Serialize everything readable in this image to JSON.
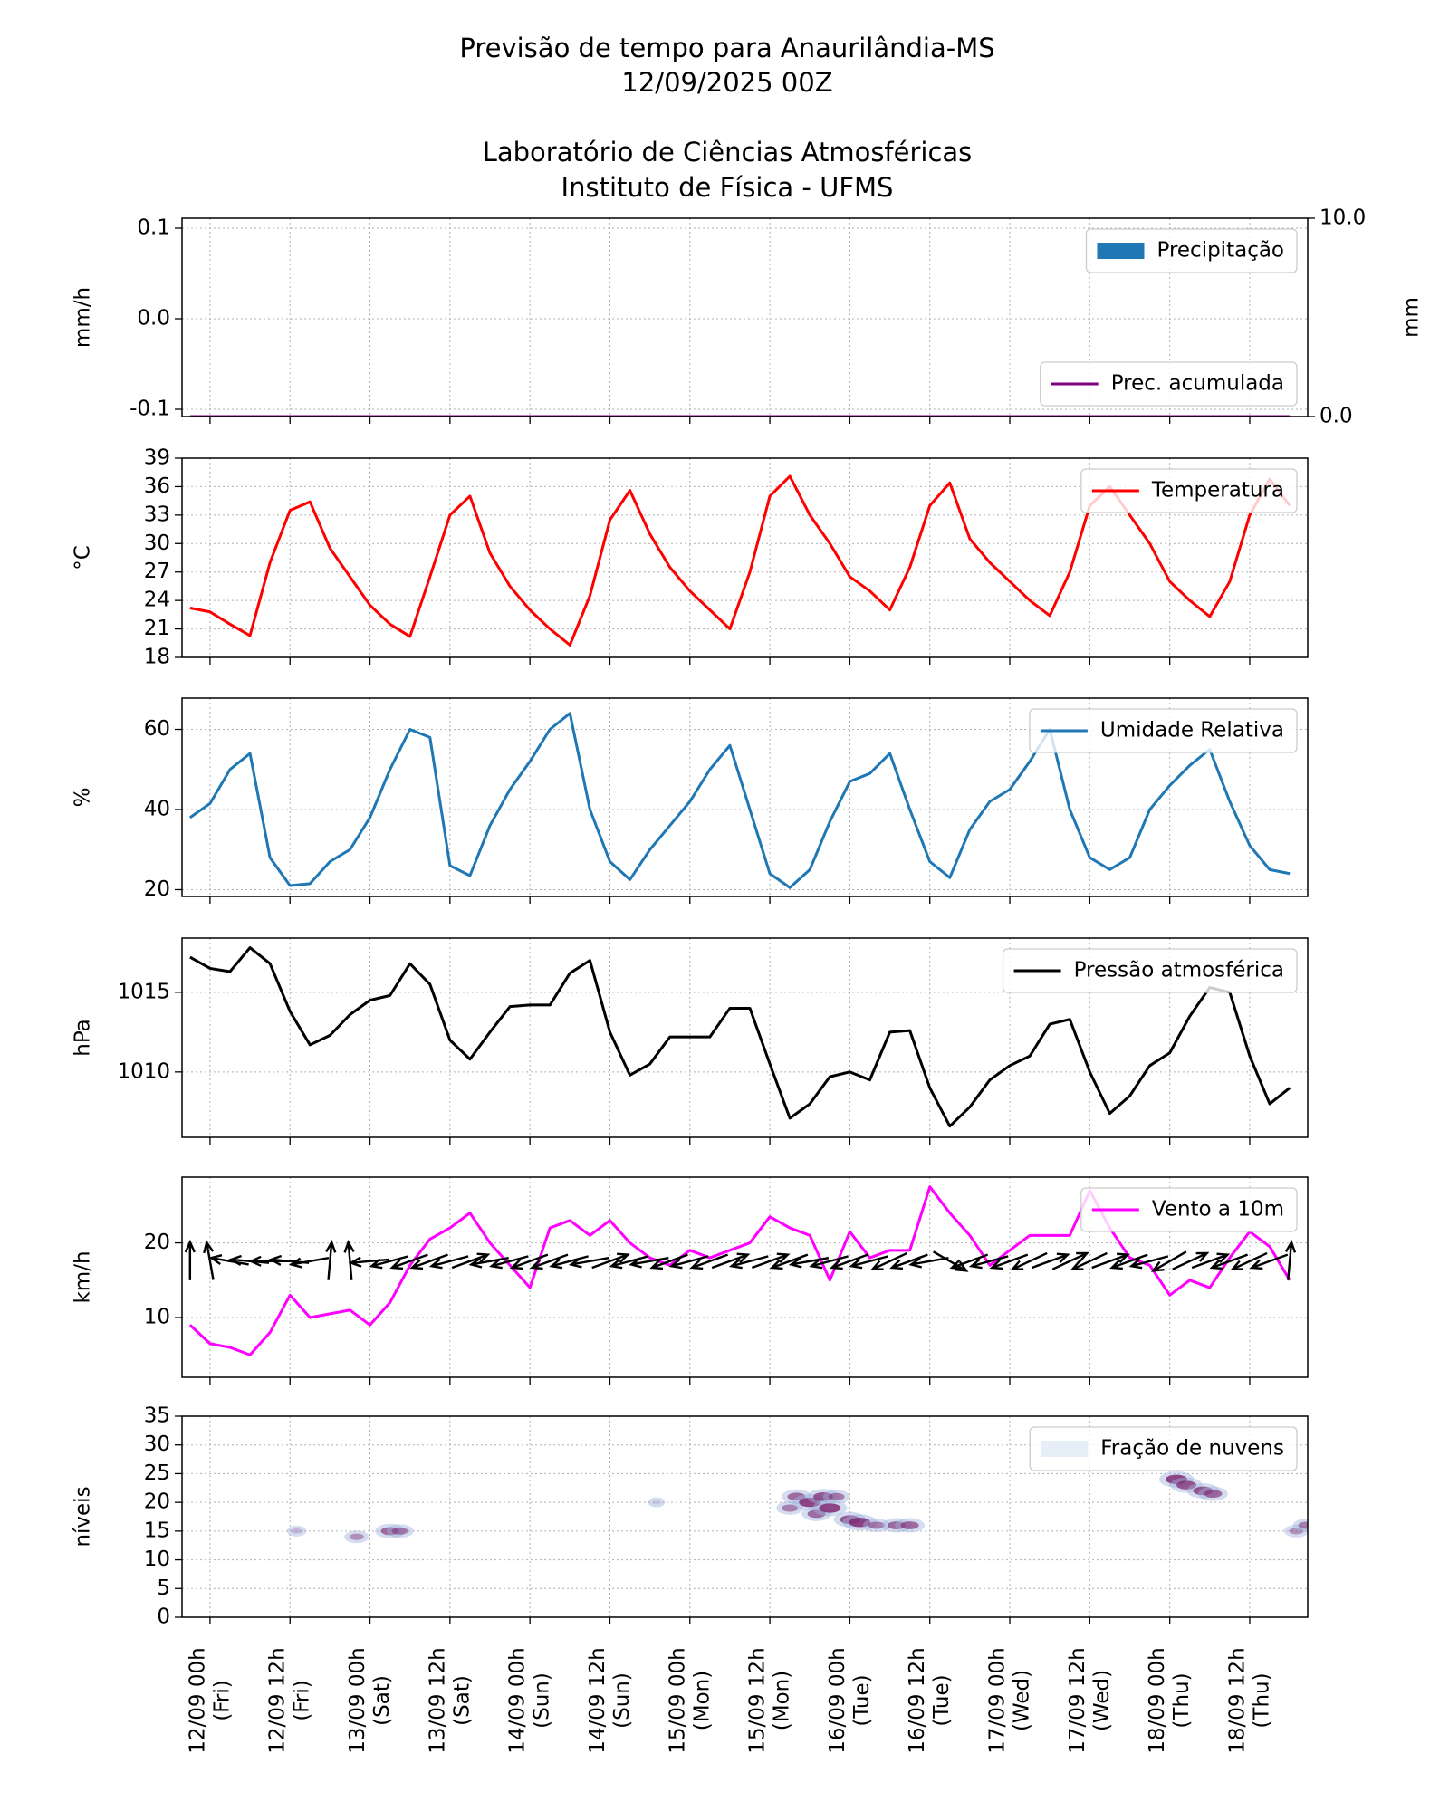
{
  "title": "Previsão de tempo para Anaurilândia-MS",
  "subtitle": "12/09/2025 00Z",
  "institution": "Laboratório de Ciências Atmosféricas",
  "department": "Instituto de Física - UFMS",
  "chart_data": [
    {
      "type": "bar",
      "ylabel": "mm/h",
      "y2label": "mm",
      "xlim": [
        -4.2,
        164.7
      ],
      "ylim": [
        -0.108,
        0.111
      ],
      "yticks": [
        0.1,
        {
          "value": 0,
          "label": "0.0"
        },
        -0.1
      ],
      "y2lim": [
        0,
        10
      ],
      "y2ticks": [
        {
          "value": 0,
          "label": "0.0"
        },
        {
          "value": 10,
          "label": "10.0"
        }
      ],
      "grid": true,
      "x": [
        -3,
        0,
        3,
        6,
        9,
        12,
        15,
        18,
        21,
        24,
        27,
        30,
        33,
        36,
        39,
        42,
        45,
        48,
        51,
        54,
        57,
        60,
        63,
        66,
        69,
        72,
        75,
        78,
        81,
        84,
        87,
        90,
        93,
        96,
        99,
        102,
        105,
        108,
        111,
        114,
        117,
        120,
        123,
        126,
        129,
        132,
        135,
        138,
        141,
        144,
        147,
        150,
        153,
        156,
        159,
        162
      ],
      "series": [
        {
          "name": "Precipitação",
          "type": "bar",
          "color": "#1f77b4",
          "legend": "upper right",
          "values": [
            0,
            0,
            0,
            0,
            0,
            0,
            0,
            0,
            0,
            0,
            0,
            0,
            0,
            0,
            0,
            0,
            0,
            0,
            0,
            0,
            0,
            0,
            0,
            0,
            0,
            0,
            0,
            0,
            0,
            0,
            0,
            0,
            0,
            0,
            0,
            0,
            0,
            0,
            0,
            0,
            0,
            0,
            0,
            0,
            0,
            0,
            0,
            0,
            0,
            0,
            0,
            0,
            0,
            0,
            0,
            0
          ]
        },
        {
          "name": "Prec. acumulada",
          "type": "line",
          "axis": "y2",
          "color": "#800080",
          "legend": "lower right",
          "values": [
            0,
            0,
            0,
            0,
            0,
            0,
            0,
            0,
            0,
            0,
            0,
            0,
            0,
            0,
            0,
            0,
            0,
            0,
            0,
            0,
            0,
            0,
            0,
            0,
            0,
            0,
            0,
            0,
            0,
            0,
            0,
            0,
            0,
            0,
            0,
            0,
            0,
            0,
            0,
            0,
            0,
            0,
            0,
            0,
            0,
            0,
            0,
            0,
            0,
            0,
            0,
            0,
            0,
            0,
            0,
            0
          ]
        }
      ]
    },
    {
      "type": "line",
      "ylabel": "°C",
      "xlim": [
        -4.2,
        164.7
      ],
      "ylim": [
        18,
        39
      ],
      "yticks": [
        18,
        21,
        24,
        27,
        30,
        33,
        36,
        39
      ],
      "grid": true,
      "x": [
        -3,
        0,
        3,
        6,
        9,
        12,
        15,
        18,
        21,
        24,
        27,
        30,
        33,
        36,
        39,
        42,
        45,
        48,
        51,
        54,
        57,
        60,
        63,
        66,
        69,
        72,
        75,
        78,
        81,
        84,
        87,
        90,
        93,
        96,
        99,
        102,
        105,
        108,
        111,
        114,
        117,
        120,
        123,
        126,
        129,
        132,
        135,
        138,
        141,
        144,
        147,
        150,
        153,
        156,
        159,
        162
      ],
      "series": [
        {
          "name": "Temperatura",
          "type": "line",
          "color": "#ff0000",
          "legend": "upper right",
          "values": [
            23.2,
            22.8,
            21.5,
            20.3,
            28,
            33.5,
            34.4,
            29.5,
            26.5,
            23.5,
            21.5,
            20.2,
            26.5,
            33,
            35,
            29,
            25.5,
            23,
            21,
            19.3,
            24.5,
            32.5,
            35.6,
            31,
            27.5,
            25,
            23,
            21,
            27,
            35,
            37.1,
            33,
            30,
            26.5,
            25,
            23,
            27.5,
            34,
            36.4,
            30.5,
            28,
            26,
            24,
            22.4,
            27,
            34,
            36,
            33,
            30,
            26,
            24,
            22.3,
            26,
            33,
            36.8,
            34
          ]
        }
      ]
    },
    {
      "type": "line",
      "ylabel": "%",
      "xlim": [
        -4.2,
        164.7
      ],
      "ylim": [
        18.3,
        67.8
      ],
      "yticks": [
        20,
        40,
        60
      ],
      "grid": true,
      "x": [
        -3,
        0,
        3,
        6,
        9,
        12,
        15,
        18,
        21,
        24,
        27,
        30,
        33,
        36,
        39,
        42,
        45,
        48,
        51,
        54,
        57,
        60,
        63,
        66,
        69,
        72,
        75,
        78,
        81,
        84,
        87,
        90,
        93,
        96,
        99,
        102,
        105,
        108,
        111,
        114,
        117,
        120,
        123,
        126,
        129,
        132,
        135,
        138,
        141,
        144,
        147,
        150,
        153,
        156,
        159,
        162
      ],
      "series": [
        {
          "name": "Umidade Relativa",
          "type": "line",
          "color": "#1f77b4",
          "legend": "upper right",
          "values": [
            38,
            41.5,
            50,
            54,
            28,
            21,
            21.5,
            27,
            30,
            38,
            50,
            60,
            58,
            26,
            23.5,
            36,
            45,
            52,
            60,
            64,
            40,
            27,
            22.5,
            30,
            36,
            42,
            50,
            56,
            40,
            24,
            20.5,
            25,
            37,
            47,
            49,
            54,
            40,
            27,
            23,
            35,
            42,
            45,
            52,
            60,
            40,
            28,
            25,
            28,
            40,
            46,
            51,
            55,
            42,
            31,
            25,
            24
          ]
        }
      ]
    },
    {
      "type": "line",
      "ylabel": "hPa",
      "xlim": [
        -4.2,
        164.7
      ],
      "ylim": [
        1005.9,
        1018.4
      ],
      "yticks": [
        1010,
        1015
      ],
      "grid": true,
      "x": [
        -3,
        0,
        3,
        6,
        9,
        12,
        15,
        18,
        21,
        24,
        27,
        30,
        33,
        36,
        39,
        42,
        45,
        48,
        51,
        54,
        57,
        60,
        63,
        66,
        69,
        72,
        75,
        78,
        81,
        84,
        87,
        90,
        93,
        96,
        99,
        102,
        105,
        108,
        111,
        114,
        117,
        120,
        123,
        126,
        129,
        132,
        135,
        138,
        141,
        144,
        147,
        150,
        153,
        156,
        159,
        162
      ],
      "series": [
        {
          "name": "Pressão atmosférica",
          "type": "line",
          "color": "#000000",
          "legend": "upper right",
          "values": [
            1017.2,
            1016.5,
            1016.3,
            1017.8,
            1016.8,
            1013.8,
            1011.7,
            1012.3,
            1013.6,
            1014.5,
            1014.8,
            1016.8,
            1015.5,
            1012,
            1010.8,
            1012.5,
            1014.1,
            1014.2,
            1014.2,
            1016.2,
            1017,
            1012.5,
            1009.8,
            1010.5,
            1012.2,
            1012.2,
            1012.2,
            1014,
            1014,
            1010.5,
            1007.1,
            1008,
            1009.7,
            1010,
            1009.5,
            1012.5,
            1012.6,
            1009,
            1006.6,
            1007.8,
            1009.5,
            1010.4,
            1011,
            1013,
            1013.3,
            1010,
            1007.4,
            1008.5,
            1010.4,
            1011.2,
            1013.5,
            1015.3,
            1015,
            1011,
            1008,
            1009
          ]
        }
      ]
    },
    {
      "type": "line",
      "ylabel": "km/h",
      "xlim": [
        -4.2,
        164.7
      ],
      "ylim": [
        2,
        28.8
      ],
      "yticks": [
        10,
        20
      ],
      "grid": true,
      "x": [
        -3,
        0,
        3,
        6,
        9,
        12,
        15,
        18,
        21,
        24,
        27,
        30,
        33,
        36,
        39,
        42,
        45,
        48,
        51,
        54,
        57,
        60,
        63,
        66,
        69,
        72,
        75,
        78,
        81,
        84,
        87,
        90,
        93,
        96,
        99,
        102,
        105,
        108,
        111,
        114,
        117,
        120,
        123,
        126,
        129,
        132,
        135,
        138,
        141,
        144,
        147,
        150,
        153,
        156,
        159,
        162
      ],
      "series": [
        {
          "name": "Vento a 10m",
          "type": "line",
          "color": "#ff00ff",
          "legend": "upper right",
          "values": [
            9,
            6.5,
            6,
            5,
            8,
            13,
            10,
            10.5,
            11,
            9,
            12,
            17,
            20.5,
            22,
            24,
            20,
            17,
            14,
            22,
            23,
            21,
            23,
            20,
            18,
            17,
            19,
            18,
            19,
            20,
            23.5,
            22,
            21,
            15,
            21.5,
            18,
            19,
            19,
            27.5,
            24,
            21,
            17,
            19,
            21,
            21,
            21,
            27,
            22,
            18,
            17,
            13,
            15,
            14,
            18,
            21.5,
            19.5,
            15
          ],
          "direction": [
            180,
            170,
            100,
            95,
            90,
            95,
            80,
            185,
            175,
            85,
            75,
            70,
            70,
            75,
            250,
            80,
            75,
            70,
            70,
            75,
            80,
            250,
            75,
            80,
            70,
            75,
            70,
            250,
            75,
            250,
            70,
            80,
            75,
            70,
            75,
            65,
            70,
            80,
            300,
            70,
            75,
            70,
            65,
            250,
            245,
            65,
            250,
            70,
            75,
            60,
            245,
            250,
            70,
            65,
            70,
            185
          ]
        }
      ]
    },
    {
      "type": "scatter",
      "ylabel": "níveis",
      "xlim": [
        -4.2,
        164.7
      ],
      "ylim": [
        0,
        35
      ],
      "yticks": [
        0,
        5,
        10,
        15,
        20,
        25,
        30,
        35
      ],
      "grid": true,
      "xticks": [
        {
          "value": 0,
          "label": "12/09 00h\n(Fri)"
        },
        {
          "value": 12,
          "label": "12/09 12h\n(Fri)"
        },
        {
          "value": 24,
          "label": "13/09 00h\n(Sat)"
        },
        {
          "value": 36,
          "label": "13/09 12h\n(Sat)"
        },
        {
          "value": 48,
          "label": "14/09 00h\n(Sun)"
        },
        {
          "value": 60,
          "label": "14/09 12h\n(Sun)"
        },
        {
          "value": 72,
          "label": "15/09 00h\n(Mon)"
        },
        {
          "value": 84,
          "label": "15/09 12h\n(Mon)"
        },
        {
          "value": 96,
          "label": "16/09 00h\n(Tue)"
        },
        {
          "value": 108,
          "label": "16/09 12h\n(Tue)"
        },
        {
          "value": 120,
          "label": "17/09 00h\n(Wed)"
        },
        {
          "value": 132,
          "label": "17/09 12h\n(Wed)"
        },
        {
          "value": 144,
          "label": "18/09 00h\n(Thu)"
        },
        {
          "value": 156,
          "label": "18/09 12h\n(Thu)"
        }
      ],
      "series": [
        {
          "name": "Fração de nuvens",
          "type": "scatter",
          "color": "#e6eef7",
          "legend": "upper right",
          "x": [
            13,
            22,
            27,
            28.5,
            67,
            87,
            88,
            90,
            91,
            92,
            93,
            94,
            96,
            97.5,
            100,
            103,
            105,
            145,
            146.5,
            149,
            150.5,
            163,
            164.5
          ],
          "y": [
            15,
            14,
            15,
            15,
            20,
            19,
            21,
            20,
            18,
            21,
            19,
            21,
            17,
            16.5,
            16,
            16,
            16,
            24,
            23,
            22,
            21.5,
            15,
            16
          ],
          "values": [
            0.2,
            0.4,
            0.6,
            0.5,
            0.1,
            0.5,
            0.6,
            0.8,
            0.6,
            0.7,
            0.8,
            0.5,
            0.7,
            0.8,
            0.5,
            0.6,
            0.6,
            0.8,
            0.7,
            0.7,
            0.6,
            0.4,
            0.5
          ]
        }
      ]
    }
  ]
}
